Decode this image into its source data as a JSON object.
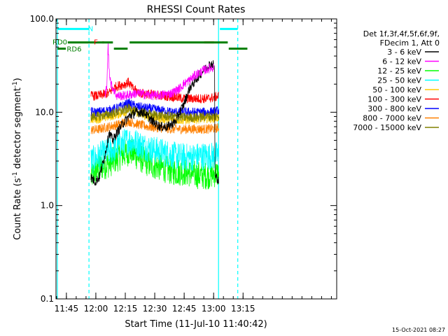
{
  "chart_data": {
    "type": "line",
    "title": "RHESSI Count Rates",
    "xlabel": "Start Time (11-Jul-10 11:40:42)",
    "ylabel_main": "Count Rate (s",
    "ylabel_sup": "-1",
    "ylabel_tail": " detector segment",
    "ylabel_end": ")",
    "y_scale": "log",
    "ylim": [
      0.1,
      100
    ],
    "xlim_min": [
      -1,
      142
    ],
    "y_ticks": [
      {
        "value": 0.1,
        "label": "0.1"
      },
      {
        "value": 1,
        "label": "1.0"
      },
      {
        "value": 10,
        "label": "10.0"
      },
      {
        "value": 100,
        "label": "100.0"
      }
    ],
    "x_ticks": [
      {
        "value": 4.3,
        "label": "11:45"
      },
      {
        "value": 19.3,
        "label": "12:00"
      },
      {
        "value": 34.3,
        "label": "12:15"
      },
      {
        "value": 49.3,
        "label": "12:30"
      },
      {
        "value": 64.3,
        "label": "12:45"
      },
      {
        "value": 79.3,
        "label": "13:00"
      },
      {
        "value": 94.3,
        "label": "13:15"
      }
    ],
    "data_start_min": 16.8,
    "data_end_min": 91.2,
    "series": [
      {
        "name": "3 - 6 keV",
        "color": "#000000",
        "points": [
          [
            16.8,
            2.0
          ],
          [
            19,
            1.8
          ],
          [
            21,
            2.0
          ],
          [
            24,
            3.5
          ],
          [
            26,
            6
          ],
          [
            28,
            5
          ],
          [
            30,
            6
          ],
          [
            32,
            7
          ],
          [
            34,
            8
          ],
          [
            36,
            9
          ],
          [
            40,
            10
          ],
          [
            44,
            10
          ],
          [
            48,
            8
          ],
          [
            52,
            7
          ],
          [
            56,
            7
          ],
          [
            60,
            8
          ],
          [
            62,
            10
          ],
          [
            64,
            12
          ],
          [
            67,
            18
          ],
          [
            70,
            22
          ],
          [
            74,
            28
          ],
          [
            77,
            32
          ],
          [
            79,
            33
          ],
          [
            79.8,
            28
          ],
          [
            80,
            2.0
          ],
          [
            81,
            2.0
          ],
          [
            82,
            1.8
          ]
        ]
      },
      {
        "name": "6 - 12 keV",
        "color": "#ff00ff",
        "points": [
          [
            24,
            15
          ],
          [
            25,
            20
          ],
          [
            25.5,
            55
          ],
          [
            26,
            30
          ],
          [
            27,
            20
          ],
          [
            30,
            15
          ],
          [
            34,
            15
          ],
          [
            40,
            16
          ],
          [
            50,
            15
          ],
          [
            58,
            16
          ],
          [
            62,
            18
          ],
          [
            64,
            20
          ],
          [
            67,
            22
          ],
          [
            70,
            25
          ],
          [
            74,
            28
          ],
          [
            78,
            30
          ],
          [
            79.5,
            30
          ]
        ]
      },
      {
        "name": "12 - 25 keV",
        "color": "#00ff00",
        "points": [
          [
            16.8,
            2.0
          ],
          [
            18,
            2.2
          ],
          [
            22,
            2.6
          ],
          [
            26,
            2.8
          ],
          [
            30,
            3.2
          ],
          [
            34,
            3.6
          ],
          [
            37,
            3.8
          ],
          [
            40,
            3.4
          ],
          [
            44,
            3.0
          ],
          [
            48,
            2.7
          ],
          [
            52,
            2.6
          ],
          [
            56,
            2.4
          ],
          [
            60,
            2.3
          ],
          [
            64,
            2.3
          ],
          [
            68,
            2.2
          ],
          [
            72,
            2.1
          ],
          [
            76,
            2.1
          ],
          [
            80,
            2.2
          ],
          [
            82,
            2.2
          ]
        ]
      },
      {
        "name": "25 - 50 keV",
        "color": "#00ffff",
        "points": [
          [
            16.8,
            3.0
          ],
          [
            19,
            3.2
          ],
          [
            22,
            3.5
          ],
          [
            26,
            3.8
          ],
          [
            30,
            4.2
          ],
          [
            34,
            4.8
          ],
          [
            36,
            5.0
          ],
          [
            40,
            4.7
          ],
          [
            44,
            4.3
          ],
          [
            48,
            4.0
          ],
          [
            52,
            3.8
          ],
          [
            56,
            3.6
          ],
          [
            60,
            3.4
          ],
          [
            64,
            3.3
          ],
          [
            68,
            3.3
          ],
          [
            72,
            3.4
          ],
          [
            76,
            3.4
          ],
          [
            80,
            3.4
          ],
          [
            82,
            3.5
          ]
        ]
      },
      {
        "name": "50 - 100 keV",
        "color": "#ffcc00",
        "points": [
          [
            16.8,
            8.5
          ],
          [
            20,
            8.5
          ],
          [
            26,
            9.0
          ],
          [
            30,
            9.5
          ],
          [
            34,
            10.0
          ],
          [
            36,
            11.0
          ],
          [
            40,
            10.0
          ],
          [
            46,
            9.0
          ],
          [
            52,
            8.6
          ],
          [
            58,
            8.3
          ],
          [
            64,
            8.3
          ],
          [
            70,
            8.5
          ],
          [
            76,
            8.6
          ],
          [
            80,
            8.7
          ],
          [
            82,
            8.8
          ]
        ]
      },
      {
        "name": "100 - 300 keV",
        "color": "#ff0000",
        "points": [
          [
            16.8,
            15
          ],
          [
            20,
            15
          ],
          [
            26,
            16
          ],
          [
            28,
            18
          ],
          [
            30,
            19
          ],
          [
            34,
            20
          ],
          [
            36,
            21
          ],
          [
            38,
            18
          ],
          [
            42,
            16
          ],
          [
            48,
            15.5
          ],
          [
            54,
            15
          ],
          [
            60,
            14.5
          ],
          [
            64,
            14
          ],
          [
            68,
            14
          ],
          [
            72,
            14
          ],
          [
            76,
            14
          ],
          [
            80,
            14.5
          ],
          [
            82,
            15
          ]
        ]
      },
      {
        "name": "300 - 800 keV",
        "color": "#0000ff",
        "points": [
          [
            16.8,
            10
          ],
          [
            20,
            10
          ],
          [
            26,
            10.5
          ],
          [
            30,
            11
          ],
          [
            34,
            12
          ],
          [
            36,
            12.5
          ],
          [
            40,
            11.5
          ],
          [
            46,
            11
          ],
          [
            52,
            10.5
          ],
          [
            58,
            10
          ],
          [
            64,
            10
          ],
          [
            70,
            10
          ],
          [
            76,
            10
          ],
          [
            80,
            10.2
          ],
          [
            82,
            10.5
          ]
        ]
      },
      {
        "name": "800 - 7000 keV",
        "color": "#ff8000",
        "points": [
          [
            16.8,
            6.5
          ],
          [
            20,
            6.5
          ],
          [
            26,
            7.0
          ],
          [
            30,
            7.3
          ],
          [
            34,
            7.8
          ],
          [
            36,
            8.0
          ],
          [
            40,
            7.5
          ],
          [
            46,
            7.0
          ],
          [
            52,
            6.8
          ],
          [
            58,
            6.6
          ],
          [
            64,
            6.6
          ],
          [
            70,
            6.6
          ],
          [
            76,
            6.6
          ],
          [
            80,
            6.7
          ],
          [
            82,
            6.8
          ]
        ]
      },
      {
        "name": "7000 - 15000 keV",
        "color": "#808000",
        "points": [
          [
            16.8,
            9.0
          ],
          [
            20,
            9.0
          ],
          [
            26,
            9.5
          ],
          [
            30,
            10
          ],
          [
            34,
            10.5
          ],
          [
            36,
            11
          ],
          [
            40,
            10
          ],
          [
            46,
            9.5
          ],
          [
            52,
            9.2
          ],
          [
            58,
            9.0
          ],
          [
            64,
            8.8
          ],
          [
            70,
            8.8
          ],
          [
            76,
            9.0
          ],
          [
            80,
            9.0
          ],
          [
            82,
            9.2
          ]
        ]
      }
    ],
    "legend_header": [
      "Det 1f,3f,4f,5f,6f,9f,",
      "FDecim 1, Att 0"
    ],
    "flag_bars": [
      {
        "label": "N",
        "color": "#00ffff",
        "level": 78,
        "segments": [
          [
            -0.3,
            15.8
          ],
          [
            82.5,
            91.6
          ]
        ]
      },
      {
        "label": "F",
        "color": "#ff0000",
        "level": 56,
        "segments": [
          [
            22.5,
            23.5
          ],
          [
            74.5,
            79.5
          ]
        ]
      },
      {
        "label": "RD0",
        "color": "#008000",
        "level": 56,
        "segments": [
          [
            5.0,
            28.0
          ],
          [
            36.5,
            86.5
          ]
        ]
      },
      {
        "label": "RD6",
        "color": "#008000",
        "level": 48,
        "segments": [
          [
            -0.3,
            4.0
          ],
          [
            28.5,
            35.5
          ],
          [
            87.0,
            96.5
          ]
        ]
      }
    ],
    "vlines_solid_cyan": [
      -0.3,
      81.8
    ],
    "vlines_dashed_cyan": [
      15.8,
      91.6
    ],
    "footer_date": "15-Oct-2021 08:27"
  }
}
